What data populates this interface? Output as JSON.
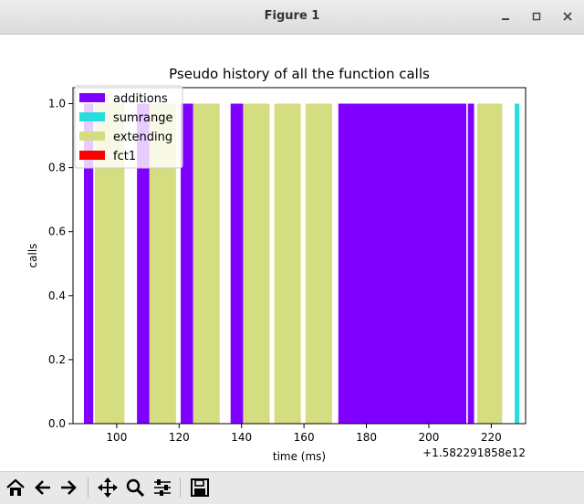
{
  "window": {
    "title": "Figure 1",
    "controls": [
      "minimize",
      "maximize",
      "close"
    ]
  },
  "toolbar": {
    "buttons": [
      {
        "name": "home",
        "icon": "home-icon"
      },
      {
        "name": "back",
        "icon": "arrow-left-icon"
      },
      {
        "name": "forward",
        "icon": "arrow-right-icon"
      },
      {
        "name": "pan",
        "icon": "move-icon"
      },
      {
        "name": "zoom",
        "icon": "magnifier-icon"
      },
      {
        "name": "configure-subplots",
        "icon": "sliders-icon"
      },
      {
        "name": "save",
        "icon": "floppy-icon"
      }
    ]
  },
  "chart_data": {
    "type": "bar",
    "title": "Pseudo history of all the function calls",
    "xlabel": "time (ms)",
    "ylabel": "calls",
    "x_offset_label": "+1.582291858e12",
    "xlim": [
      86,
      231
    ],
    "ylim": [
      0,
      1.05
    ],
    "x_ticks": [
      100,
      120,
      140,
      160,
      180,
      200,
      220
    ],
    "y_ticks": [
      0.0,
      0.2,
      0.4,
      0.6,
      0.8,
      1.0
    ],
    "x_tick_labels": [
      "100",
      "120",
      "140",
      "160",
      "180",
      "200",
      "220"
    ],
    "y_tick_labels": [
      "0.0",
      "0.2",
      "0.4",
      "0.6",
      "0.8",
      "1.0"
    ],
    "legend_position": "top-left",
    "series": [
      {
        "name": "additions",
        "color": "#8000ff",
        "bars": [
          [
            89.5,
            92.5
          ],
          [
            106.5,
            110.5
          ],
          [
            120.5,
            124.5
          ],
          [
            136.5,
            140.5
          ],
          [
            171,
            212
          ],
          [
            212.5,
            214.5
          ]
        ]
      },
      {
        "name": "sumrange",
        "color": "#2adddd",
        "bars": [
          [
            227.5,
            229
          ]
        ]
      },
      {
        "name": "extending",
        "color": "#d4dd80",
        "bars": [
          [
            93,
            102.5
          ],
          [
            110.5,
            119
          ],
          [
            124.5,
            133
          ],
          [
            140.5,
            149
          ],
          [
            150.5,
            159
          ],
          [
            160.5,
            169
          ],
          [
            215.5,
            223.5
          ]
        ]
      },
      {
        "name": "fct1",
        "color": "#ff0000",
        "bars": []
      }
    ]
  }
}
